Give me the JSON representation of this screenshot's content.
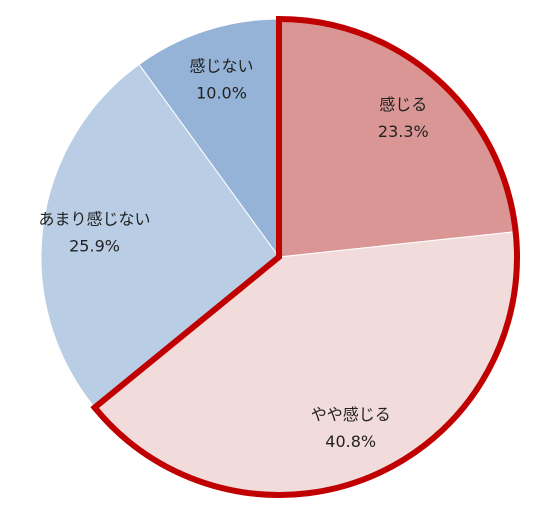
{
  "chart_data": {
    "type": "pie",
    "categories": [
      "感じる",
      "やや感じる",
      "あまり感じない",
      "感じない"
    ],
    "values": [
      23.3,
      40.8,
      25.9,
      10.0
    ],
    "value_labels": [
      "23.3%",
      "40.8%",
      "25.9%",
      "10.0%"
    ],
    "colors": [
      "#d99694",
      "#f2dcdb",
      "#b9cde5",
      "#95b3d7"
    ],
    "outline": {
      "color": "#c00000",
      "slices": [
        0,
        1
      ]
    }
  }
}
